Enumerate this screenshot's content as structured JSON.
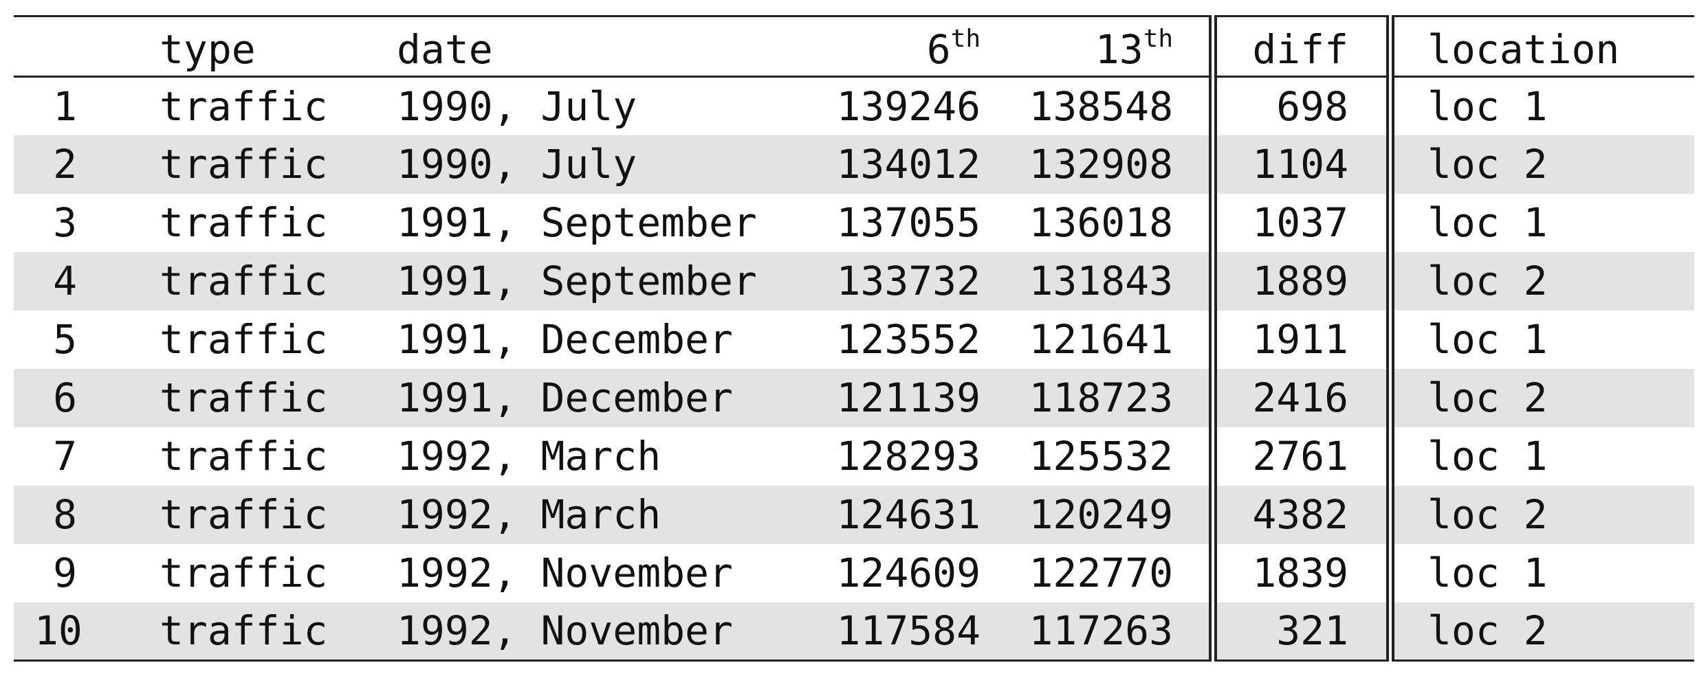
{
  "table": {
    "headers": {
      "index": "",
      "type": "type",
      "date": "date",
      "col6": {
        "base": "6",
        "sup": "th"
      },
      "col13": {
        "base": "13",
        "sup": "th"
      },
      "diff": "diff",
      "location": "location"
    },
    "rows": [
      {
        "index": "1",
        "type": "traffic",
        "date": "1990, July",
        "col6": "139246",
        "col13": "138548",
        "diff": "698",
        "location": "loc 1"
      },
      {
        "index": "2",
        "type": "traffic",
        "date": "1990, July",
        "col6": "134012",
        "col13": "132908",
        "diff": "1104",
        "location": "loc 2"
      },
      {
        "index": "3",
        "type": "traffic",
        "date": "1991, September",
        "col6": "137055",
        "col13": "136018",
        "diff": "1037",
        "location": "loc 1"
      },
      {
        "index": "4",
        "type": "traffic",
        "date": "1991, September",
        "col6": "133732",
        "col13": "131843",
        "diff": "1889",
        "location": "loc 2"
      },
      {
        "index": "5",
        "type": "traffic",
        "date": "1991, December",
        "col6": "123552",
        "col13": "121641",
        "diff": "1911",
        "location": "loc 1"
      },
      {
        "index": "6",
        "type": "traffic",
        "date": "1991, December",
        "col6": "121139",
        "col13": "118723",
        "diff": "2416",
        "location": "loc 2"
      },
      {
        "index": "7",
        "type": "traffic",
        "date": "1992, March",
        "col6": "128293",
        "col13": "125532",
        "diff": "2761",
        "location": "loc 1"
      },
      {
        "index": "8",
        "type": "traffic",
        "date": "1992, March",
        "col6": "124631",
        "col13": "120249",
        "diff": "4382",
        "location": "loc 2"
      },
      {
        "index": "9",
        "type": "traffic",
        "date": "1992, November",
        "col6": "124609",
        "col13": "122770",
        "diff": "1839",
        "location": "loc 1"
      },
      {
        "index": "10",
        "type": "traffic",
        "date": "1992, November",
        "col6": "117584",
        "col13": "117263",
        "diff": "321",
        "location": "loc 2"
      }
    ],
    "colors": {
      "shaded_row": "#e3e3e3",
      "rule": "#222222",
      "text": "#111111"
    }
  }
}
